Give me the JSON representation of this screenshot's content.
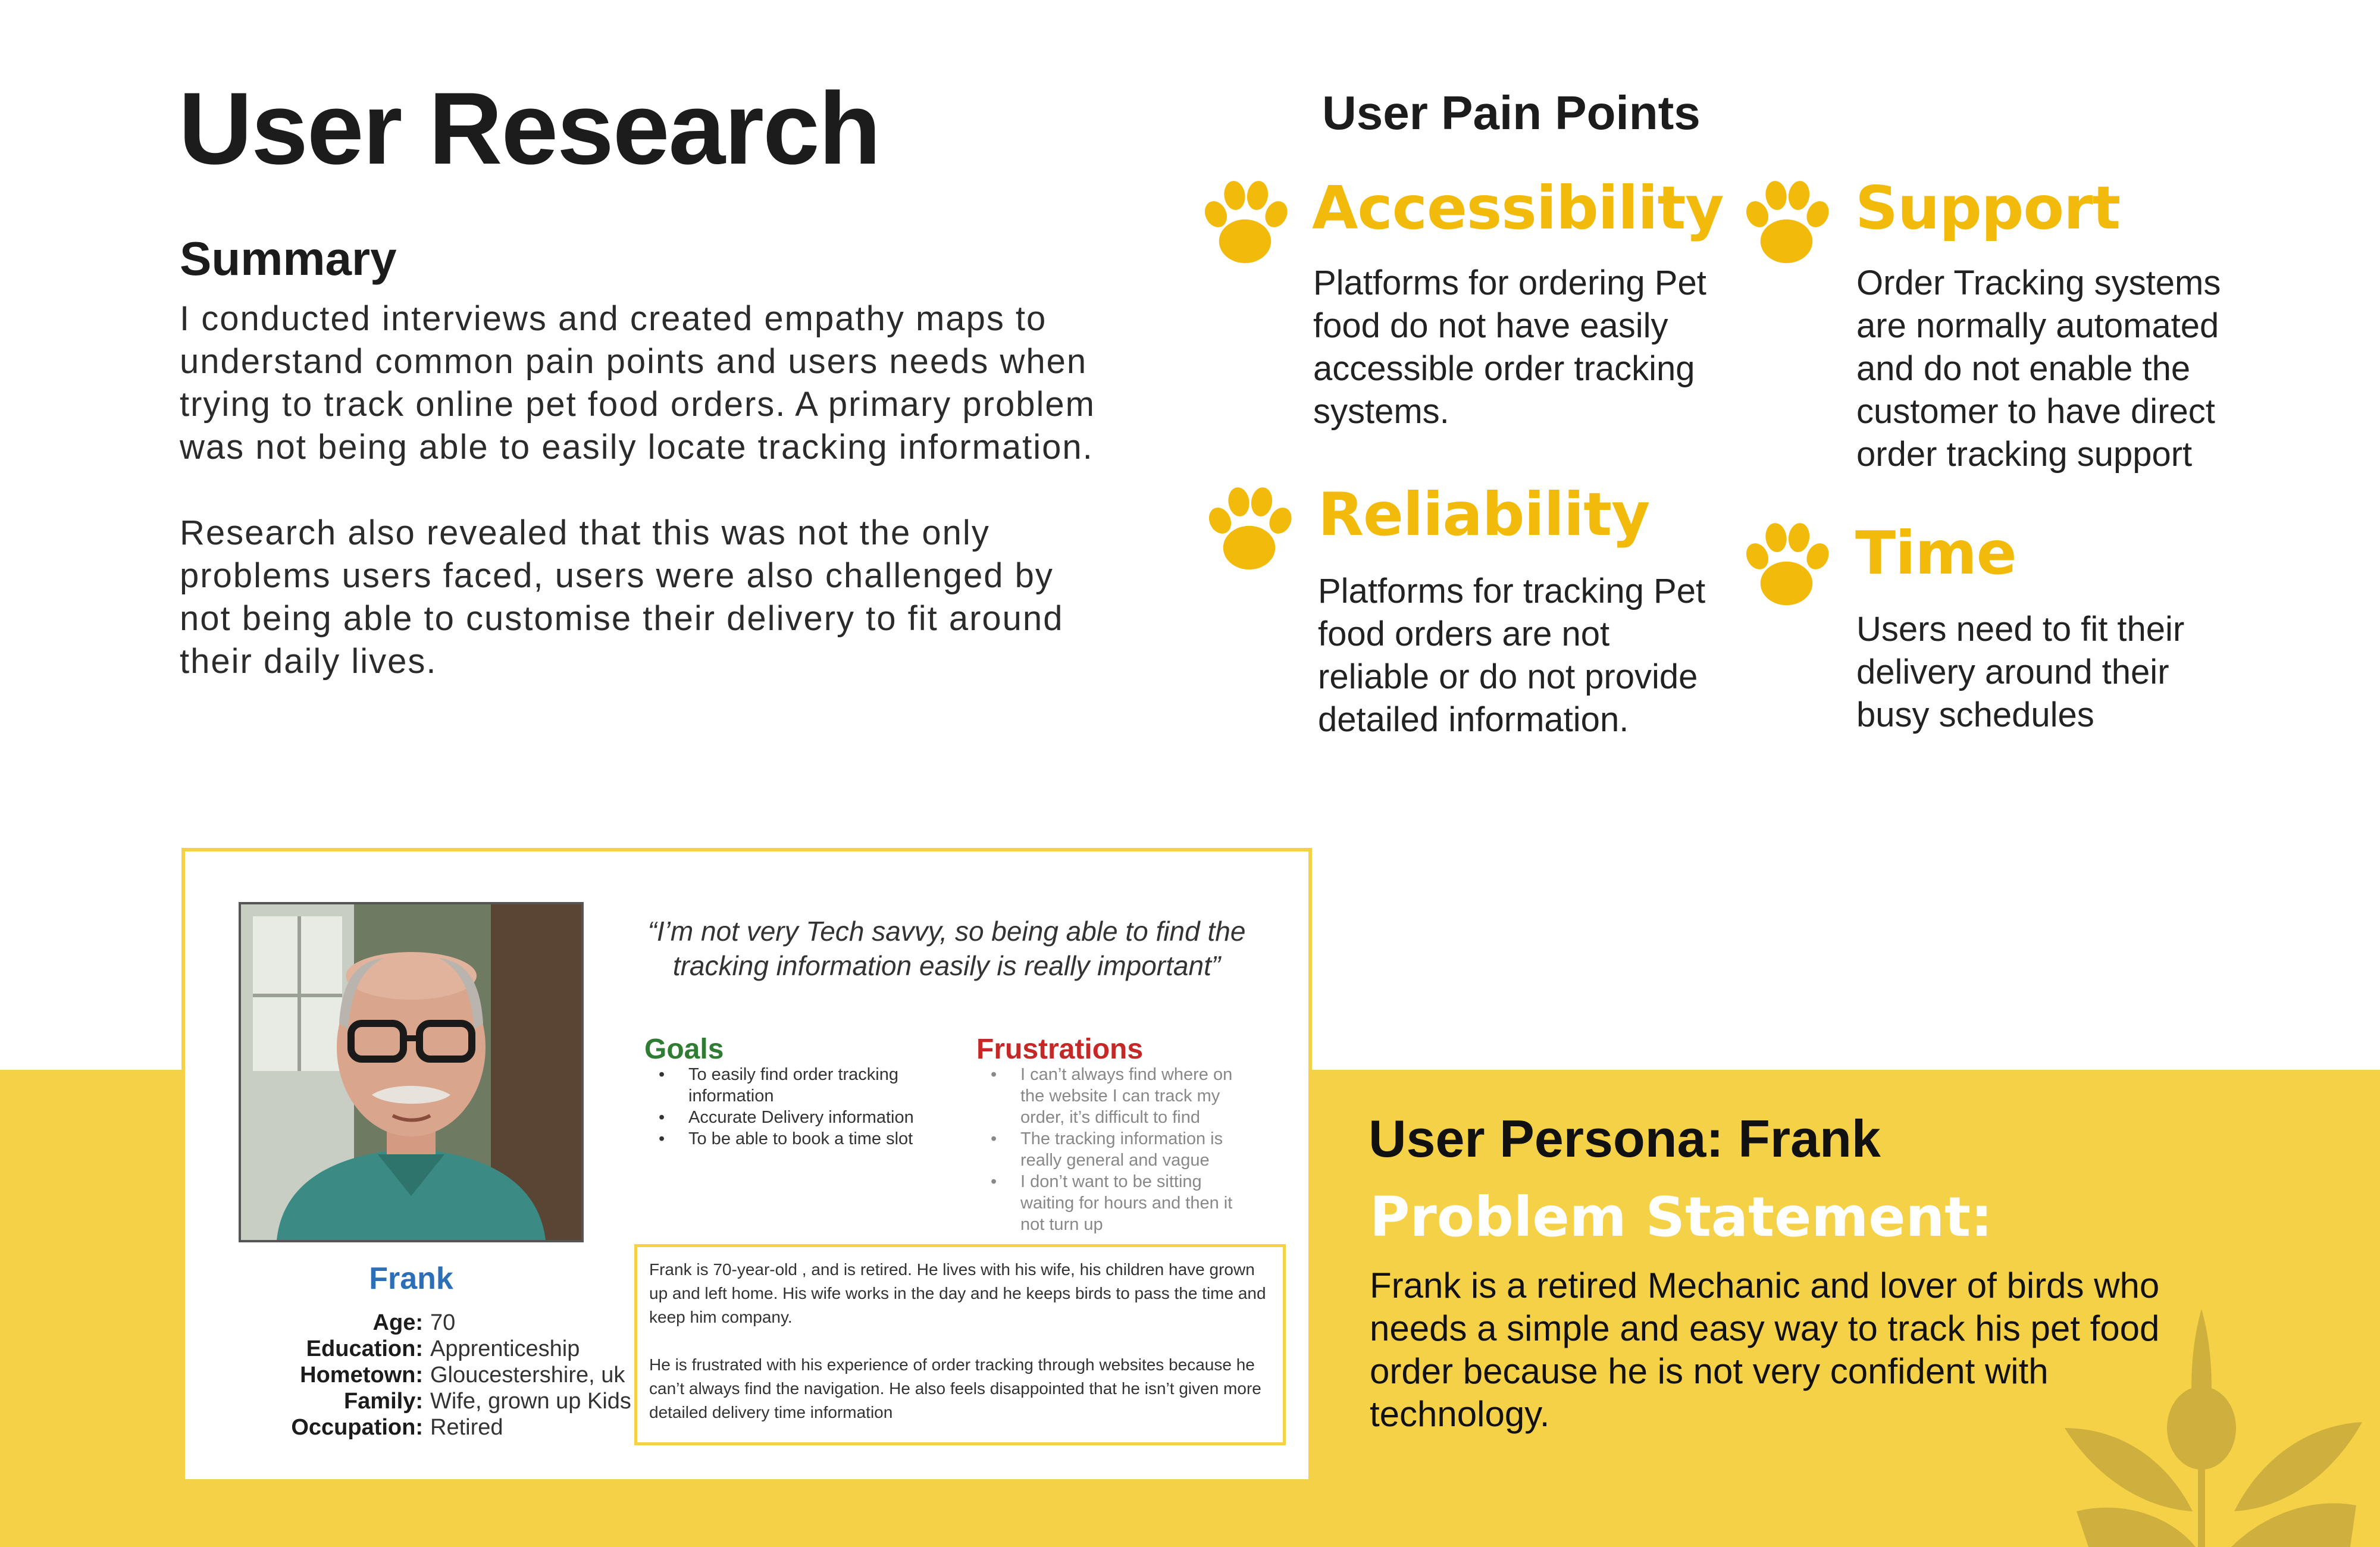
{
  "page": {
    "title": "User Research"
  },
  "summary": {
    "heading": "Summary",
    "paragraph1": "I conducted interviews and created empathy maps to understand common pain points and users needs when trying to track online pet food orders. A primary problem was not being able to easily locate tracking information.",
    "paragraph2": "Research also revealed that this was not the only problems users faced, users were also challenged by not being able to customise their delivery to fit around their daily lives."
  },
  "pain_points": {
    "heading": "User Pain Points",
    "items": [
      {
        "title": "Accessibility",
        "text": "Platforms for ordering Pet food do not have easily accessible order tracking systems."
      },
      {
        "title": "Support",
        "text": "Order Tracking systems are normally automated and do not enable the customer to have direct order tracking support"
      },
      {
        "title": "Reliability",
        "text": "Platforms for tracking Pet food orders are not reliable or do not provide detailed information."
      },
      {
        "title": "Time",
        "text": "Users need to fit their delivery around their busy schedules"
      }
    ],
    "icon": "paw-icon",
    "accent_color": "#f2bb0c"
  },
  "persona_card": {
    "name": "Frank",
    "quote": "“I’m not very Tech savvy, so being able to find the tracking information easily is really important”",
    "details": [
      {
        "label": "Age:",
        "value": "70"
      },
      {
        "label": "Education:",
        "value": "Apprenticeship"
      },
      {
        "label": "Hometown:",
        "value": "Gloucestershire, uk"
      },
      {
        "label": "Family:",
        "value": "Wife, grown up Kids"
      },
      {
        "label": "Occupation:",
        "value": "Retired"
      }
    ],
    "goals_heading": "Goals",
    "goals": [
      "To easily find order tracking information",
      "Accurate Delivery information",
      "To be able to book a time slot"
    ],
    "frustrations_heading": "Frustrations",
    "frustrations": [
      "I can’t always find where on the website I can track my order, it’s difficult to find",
      "The tracking information is really general and vague",
      "I don’t want to be sitting waiting for hours and then it not turn up"
    ],
    "bio1": "Frank is  70-year-old , and is retired.  He lives with his wife, his children have grown up and left home. His wife works in the day and he keeps birds to pass the time and keep him company.",
    "bio2": "He is frustrated with his experience of order tracking through websites because he can’t always find the navigation. He also feels disappointed that he isn’t given more detailed delivery time information"
  },
  "persona_section": {
    "heading": "User Persona: Frank",
    "problem_label": "Problem Statement:",
    "problem_text": "Frank is a retired Mechanic and lover of birds who needs a simple and easy way to track his pet food order because he is not very confident with technology."
  },
  "colors": {
    "band": "#f5d148",
    "goals": "#2e7d32",
    "frustrations": "#c62828",
    "name": "#2c6fb7"
  }
}
